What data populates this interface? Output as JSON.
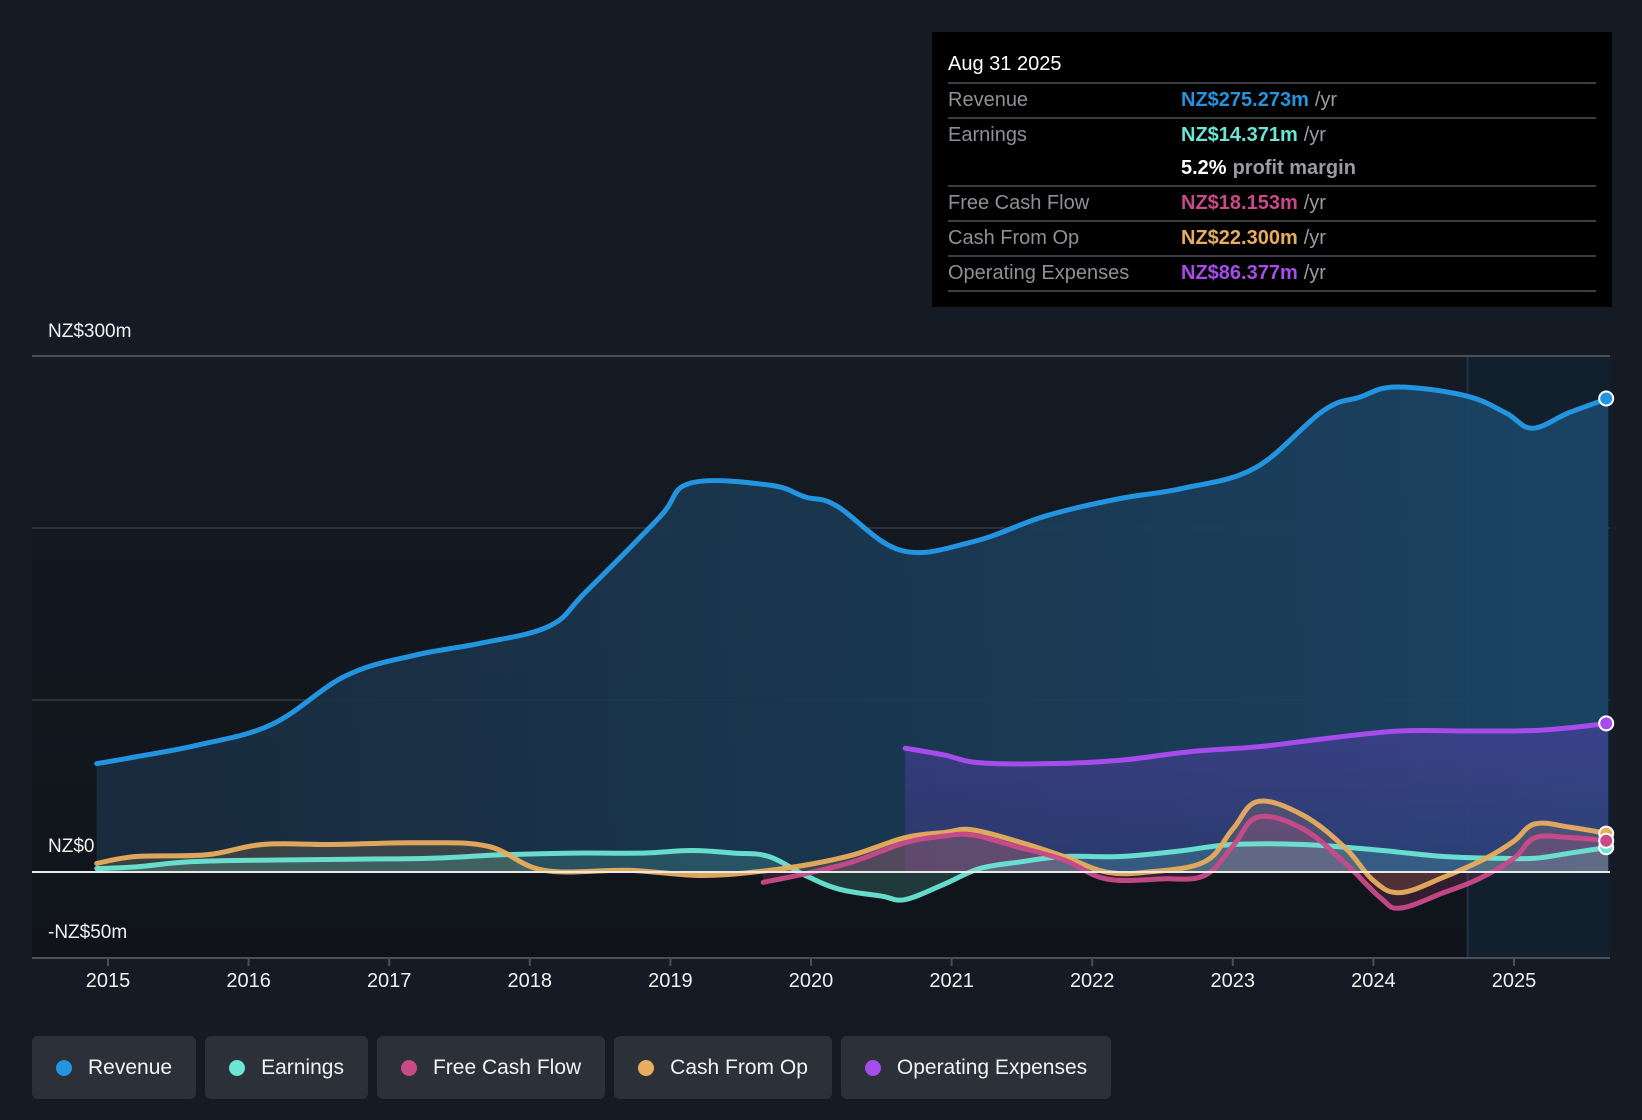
{
  "tooltip": {
    "date": "Aug 31 2025",
    "rows": [
      {
        "label": "Revenue",
        "value": "NZ$275.273m",
        "unit": "/yr",
        "color": "#2394df"
      },
      {
        "label": "Earnings",
        "value": "NZ$14.371m",
        "unit": "/yr",
        "color": "#6ce5d4"
      },
      {
        "label": "",
        "margin_value": "5.2%",
        "margin_text": "profit margin"
      },
      {
        "label": "Free Cash Flow",
        "value": "NZ$18.153m",
        "unit": "/yr",
        "color": "#c94a89"
      },
      {
        "label": "Cash From Op",
        "value": "NZ$22.300m",
        "unit": "/yr",
        "color": "#e8ad5d"
      },
      {
        "label": "Operating Expenses",
        "value": "NZ$86.377m",
        "unit": "/yr",
        "color": "#a64ceb"
      }
    ]
  },
  "legend": [
    {
      "label": "Revenue",
      "color": "#2394df"
    },
    {
      "label": "Earnings",
      "color": "#6ce5d4"
    },
    {
      "label": "Free Cash Flow",
      "color": "#c94a89"
    },
    {
      "label": "Cash From Op",
      "color": "#e8ad5d"
    },
    {
      "label": "Operating Expenses",
      "color": "#a64ceb"
    }
  ],
  "chart_data": {
    "type": "area",
    "title": "",
    "xlabel": "",
    "ylabel": "",
    "currency": "NZ$",
    "y_tick_labels": [
      {
        "value": 300,
        "label": "NZ$300m"
      },
      {
        "value": 0,
        "label": "NZ$0"
      },
      {
        "value": -50,
        "label": "-NZ$50m"
      }
    ],
    "y_gridlines": [
      300,
      200,
      100,
      0
    ],
    "ylim": [
      -50,
      300
    ],
    "xlim": [
      2014.5,
      2025.67
    ],
    "x_ticks": [
      "2015",
      "2016",
      "2017",
      "2018",
      "2019",
      "2020",
      "2021",
      "2022",
      "2023",
      "2024",
      "2025"
    ],
    "forecast_band_start": 2024.67,
    "legend_position": "bottom",
    "series": [
      {
        "name": "Revenue",
        "color": "#2394df",
        "points": [
          [
            2014.92,
            63
          ],
          [
            2015.2,
            67
          ],
          [
            2015.65,
            74
          ],
          [
            2016.17,
            86
          ],
          [
            2016.69,
            114
          ],
          [
            2017.18,
            126
          ],
          [
            2017.65,
            133
          ],
          [
            2018.14,
            143
          ],
          [
            2018.4,
            163
          ],
          [
            2018.92,
            206
          ],
          [
            2019.14,
            226
          ],
          [
            2019.7,
            225
          ],
          [
            2019.96,
            218
          ],
          [
            2020.18,
            213
          ],
          [
            2020.64,
            187
          ],
          [
            2021.15,
            192
          ],
          [
            2021.67,
            207
          ],
          [
            2022.19,
            217
          ],
          [
            2022.64,
            223
          ],
          [
            2023.16,
            235
          ],
          [
            2023.64,
            268
          ],
          [
            2023.9,
            276
          ],
          [
            2024.16,
            282
          ],
          [
            2024.65,
            277
          ],
          [
            2024.94,
            267
          ],
          [
            2025.13,
            258
          ],
          [
            2025.39,
            267
          ],
          [
            2025.67,
            275.3
          ]
        ]
      },
      {
        "name": "Earnings",
        "color": "#6ce5d4",
        "points": [
          [
            2014.92,
            2
          ],
          [
            2015.2,
            3
          ],
          [
            2015.6,
            6
          ],
          [
            2016.2,
            7
          ],
          [
            2016.8,
            7.5
          ],
          [
            2017.3,
            8
          ],
          [
            2017.8,
            10
          ],
          [
            2018.3,
            11
          ],
          [
            2018.8,
            11
          ],
          [
            2019.15,
            12.5
          ],
          [
            2019.45,
            11
          ],
          [
            2019.7,
            9
          ],
          [
            2019.96,
            -2
          ],
          [
            2020.2,
            -10
          ],
          [
            2020.5,
            -14
          ],
          [
            2020.67,
            -16
          ],
          [
            2020.95,
            -7
          ],
          [
            2021.2,
            2
          ],
          [
            2021.5,
            6
          ],
          [
            2021.8,
            9
          ],
          [
            2022.2,
            9
          ],
          [
            2022.6,
            12
          ],
          [
            2023.0,
            16
          ],
          [
            2023.5,
            16
          ],
          [
            2024.0,
            13
          ],
          [
            2024.5,
            9
          ],
          [
            2024.9,
            8
          ],
          [
            2025.15,
            8
          ],
          [
            2025.4,
            11
          ],
          [
            2025.67,
            14.4
          ]
        ]
      },
      {
        "name": "Free Cash Flow",
        "color": "#c94a89",
        "points": [
          [
            2019.66,
            -6
          ],
          [
            2019.96,
            -1
          ],
          [
            2020.3,
            6
          ],
          [
            2020.67,
            17
          ],
          [
            2020.95,
            21
          ],
          [
            2021.15,
            21.5
          ],
          [
            2021.45,
            15
          ],
          [
            2021.8,
            7
          ],
          [
            2022.1,
            -4
          ],
          [
            2022.5,
            -4
          ],
          [
            2022.8,
            -2
          ],
          [
            2023.0,
            15
          ],
          [
            2023.18,
            32
          ],
          [
            2023.5,
            25
          ],
          [
            2023.8,
            5
          ],
          [
            2024.05,
            -15
          ],
          [
            2024.19,
            -21
          ],
          [
            2024.5,
            -12
          ],
          [
            2024.75,
            -4
          ],
          [
            2025.0,
            8
          ],
          [
            2025.15,
            20
          ],
          [
            2025.4,
            20
          ],
          [
            2025.67,
            18.2
          ]
        ]
      },
      {
        "name": "Cash From Op",
        "color": "#e8ad5d",
        "points": [
          [
            2014.92,
            5
          ],
          [
            2015.2,
            9
          ],
          [
            2015.7,
            10
          ],
          [
            2016.1,
            16
          ],
          [
            2016.6,
            16
          ],
          [
            2017.2,
            17
          ],
          [
            2017.7,
            15
          ],
          [
            2018.1,
            1
          ],
          [
            2018.7,
            1
          ],
          [
            2019.2,
            -2
          ],
          [
            2019.6,
            0
          ],
          [
            2019.96,
            4
          ],
          [
            2020.3,
            10
          ],
          [
            2020.67,
            20
          ],
          [
            2020.95,
            23
          ],
          [
            2021.15,
            24.5
          ],
          [
            2021.5,
            17
          ],
          [
            2021.8,
            9
          ],
          [
            2022.1,
            0
          ],
          [
            2022.4,
            0
          ],
          [
            2022.8,
            6
          ],
          [
            2023.0,
            25
          ],
          [
            2023.18,
            41
          ],
          [
            2023.5,
            33
          ],
          [
            2023.8,
            14
          ],
          [
            2024.0,
            -5
          ],
          [
            2024.19,
            -12
          ],
          [
            2024.5,
            -3
          ],
          [
            2024.8,
            8
          ],
          [
            2025.0,
            18
          ],
          [
            2025.15,
            28
          ],
          [
            2025.4,
            26
          ],
          [
            2025.67,
            22.3
          ]
        ]
      },
      {
        "name": "Operating Expenses",
        "color": "#a64ceb",
        "points": [
          [
            2020.67,
            72
          ],
          [
            2020.95,
            68
          ],
          [
            2021.2,
            63.5
          ],
          [
            2021.7,
            63
          ],
          [
            2022.2,
            65
          ],
          [
            2022.7,
            70
          ],
          [
            2023.2,
            73
          ],
          [
            2023.7,
            78
          ],
          [
            2024.19,
            82
          ],
          [
            2024.7,
            82
          ],
          [
            2025.2,
            82.5
          ],
          [
            2025.67,
            86.4
          ]
        ]
      }
    ]
  }
}
